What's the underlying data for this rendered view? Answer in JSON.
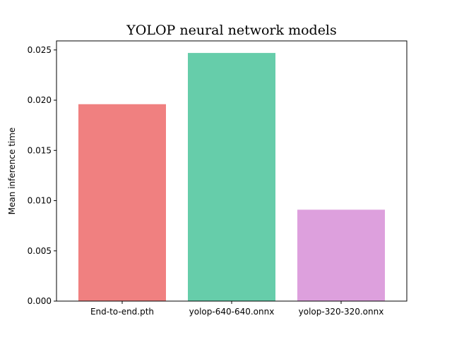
{
  "chart_data": {
    "type": "bar",
    "title": "YOLOP neural network models",
    "xlabel": "",
    "ylabel": "Mean inference time",
    "categories": [
      "End-to-end.pth",
      "yolop-640-640.onnx",
      "yolop-320-320.onnx"
    ],
    "values": [
      0.0196,
      0.0247,
      0.0091
    ],
    "colors": [
      "#f08080",
      "#66cdaa",
      "#dda0dd"
    ],
    "ylim": [
      0,
      0.0259
    ],
    "yticks": [
      0.0,
      0.005,
      0.01,
      0.015,
      0.02,
      0.025
    ],
    "ytick_labels": [
      "0.000",
      "0.005",
      "0.010",
      "0.015",
      "0.020",
      "0.025"
    ],
    "grid": false,
    "legend": "none"
  }
}
